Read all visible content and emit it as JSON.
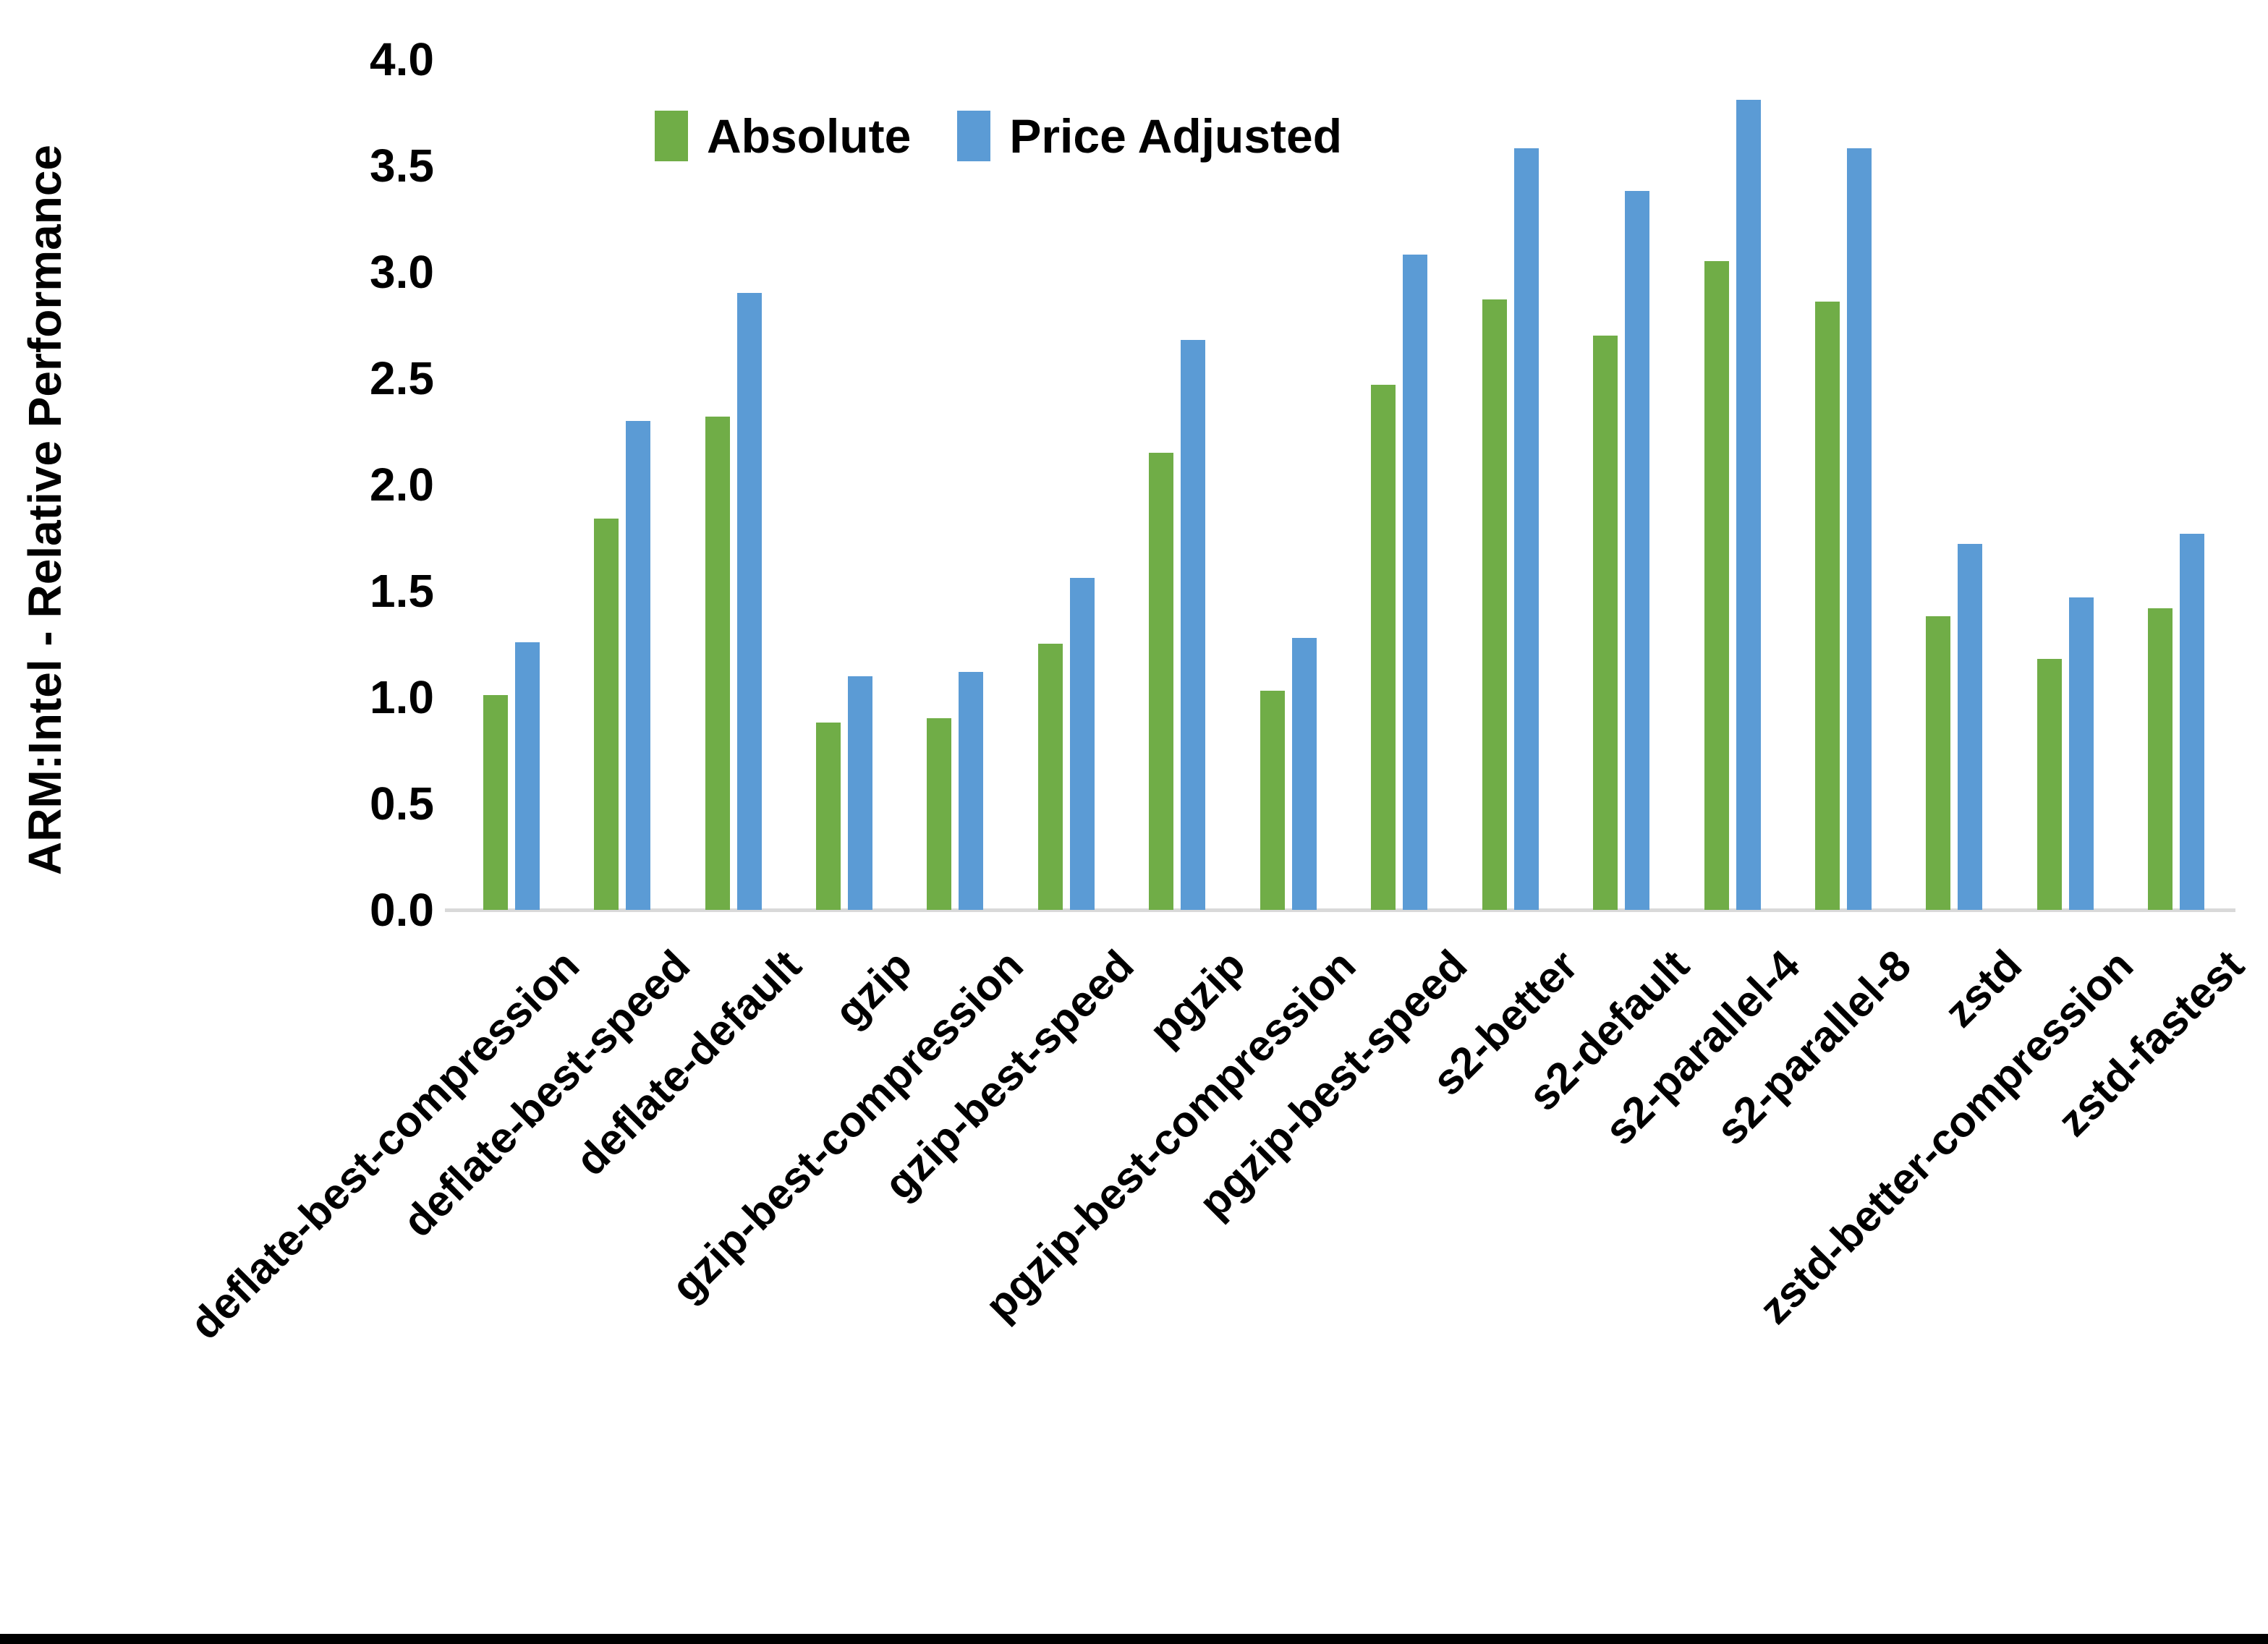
{
  "chart_data": {
    "type": "bar",
    "title": "",
    "xlabel": "",
    "ylabel": "ARM:Intel - Relative Performance",
    "ylim": [
      0.0,
      4.0
    ],
    "ytick_step": 0.5,
    "yticks": [
      "0.0",
      "0.5",
      "1.0",
      "1.5",
      "2.0",
      "2.5",
      "3.0",
      "3.5",
      "4.0"
    ],
    "grid": false,
    "legend_position": "top-center",
    "axis_line_color": "#d9d9d9",
    "text_color": "#000000",
    "background_color": "#ffffff",
    "bottom_border_color": "#000000",
    "categories": [
      "deflate-best-compression",
      "deflate-best-speed",
      "deflate-default",
      "gzip",
      "gzip-best-compression",
      "gzip-best-speed",
      "pgzip",
      "pgzip-best-compression",
      "pgzip-best-speed",
      "s2-better",
      "s2-default",
      "s2-parallel-4",
      "s2-parallel-8",
      "zstd",
      "zstd-better-compression",
      "zstd-fastest"
    ],
    "series": [
      {
        "name": "Absolute",
        "color": "#70AD47",
        "values": [
          1.01,
          1.84,
          2.32,
          0.88,
          0.9,
          1.25,
          2.15,
          1.03,
          2.47,
          2.87,
          2.7,
          3.05,
          2.86,
          1.38,
          1.18,
          1.42
        ]
      },
      {
        "name": "Price Adjusted",
        "color": "#5B9BD5",
        "values": [
          1.26,
          2.3,
          2.9,
          1.1,
          1.12,
          1.56,
          2.68,
          1.28,
          3.08,
          3.58,
          3.38,
          3.81,
          3.58,
          1.72,
          1.47,
          1.77
        ]
      }
    ]
  }
}
